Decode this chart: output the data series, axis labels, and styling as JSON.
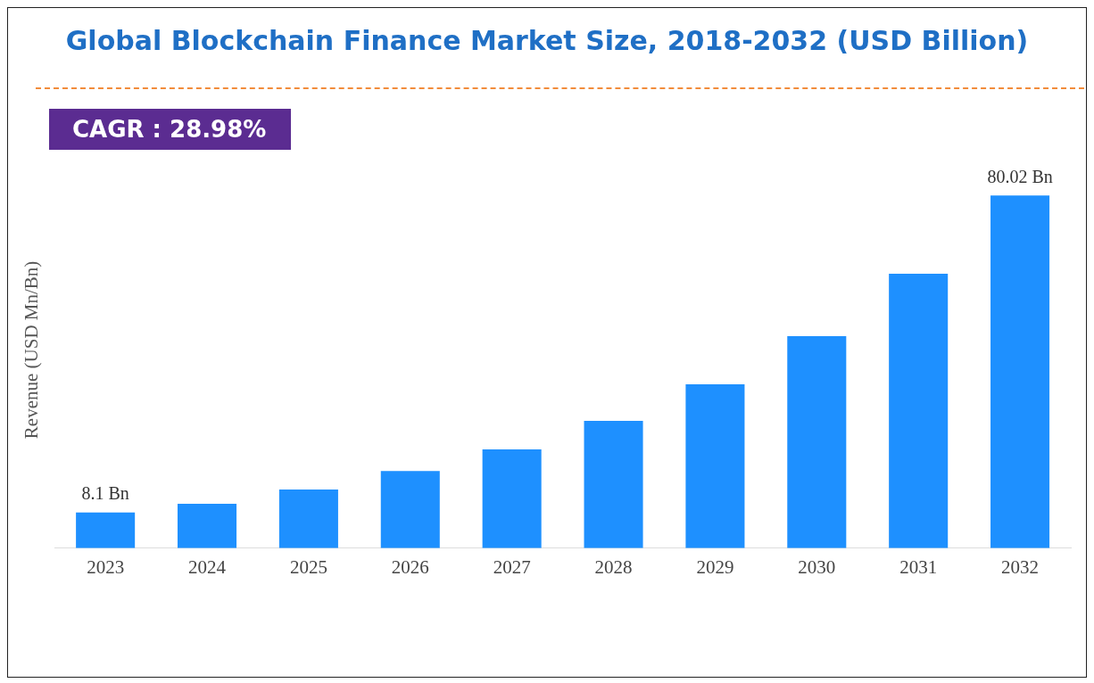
{
  "chart_data": {
    "type": "bar",
    "title": "Global Blockchain Finance Market Size, 2018-2032 (USD Billion)",
    "ylabel": "Revenue (USD Mn/Bn)",
    "categories": [
      "2023",
      "2024",
      "2025",
      "2026",
      "2027",
      "2028",
      "2029",
      "2030",
      "2031",
      "2032"
    ],
    "values": [
      8.1,
      10.1,
      13.3,
      17.5,
      22.4,
      28.9,
      37.2,
      48.1,
      62.3,
      80.02
    ],
    "value_labels": [
      "8.1 Bn",
      null,
      null,
      null,
      null,
      null,
      null,
      null,
      null,
      "80.02 Bn"
    ],
    "color": "#1e90ff",
    "annotations": [
      "CAGR : 28.98%"
    ]
  }
}
